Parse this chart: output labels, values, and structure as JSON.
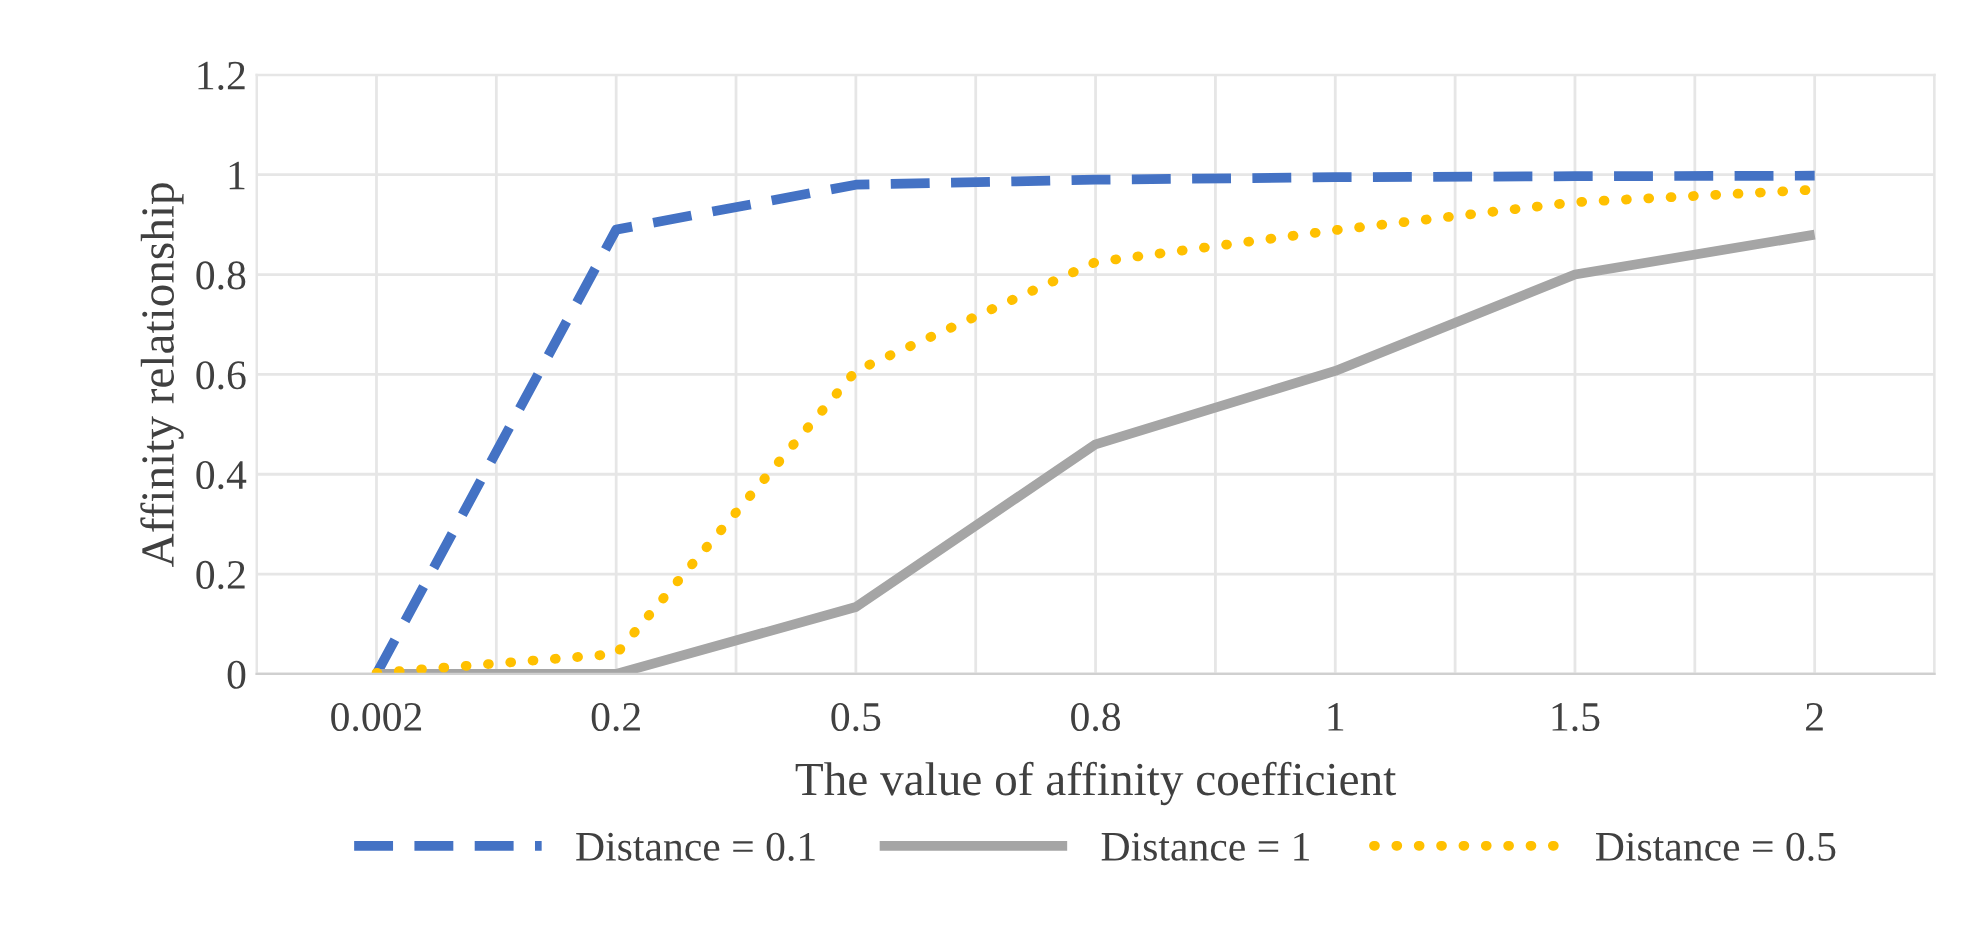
{
  "chart_data": {
    "type": "line",
    "xlabel": "The value of affinity coefficient",
    "ylabel": "Affinity relationship",
    "categories": [
      "0.002",
      "0.2",
      "0.5",
      "0.8",
      "1",
      "1.5",
      "2"
    ],
    "series": [
      {
        "name": "Distance = 0.1",
        "color": "#4472c4",
        "line_style": "dashed",
        "values": [
          0,
          0.89,
          0.98,
          0.99,
          0.995,
          0.997,
          0.998
        ]
      },
      {
        "name": "Distance = 1",
        "color": "#a5a5a5",
        "line_style": "solid",
        "values": [
          0,
          0,
          0.134,
          0.46,
          0.607,
          0.8,
          0.88
        ]
      },
      {
        "name": "Distance = 0.5",
        "color": "#ffc000",
        "line_style": "dotted",
        "values": [
          0.002,
          0.04,
          0.607,
          0.825,
          0.889,
          0.945,
          0.97
        ]
      }
    ],
    "ylim": [
      0,
      1.2
    ],
    "yticks": [
      0,
      0.2,
      0.4,
      0.6,
      0.8,
      1,
      1.2
    ],
    "grid": true,
    "legend": "bottom",
    "marker": "none"
  }
}
